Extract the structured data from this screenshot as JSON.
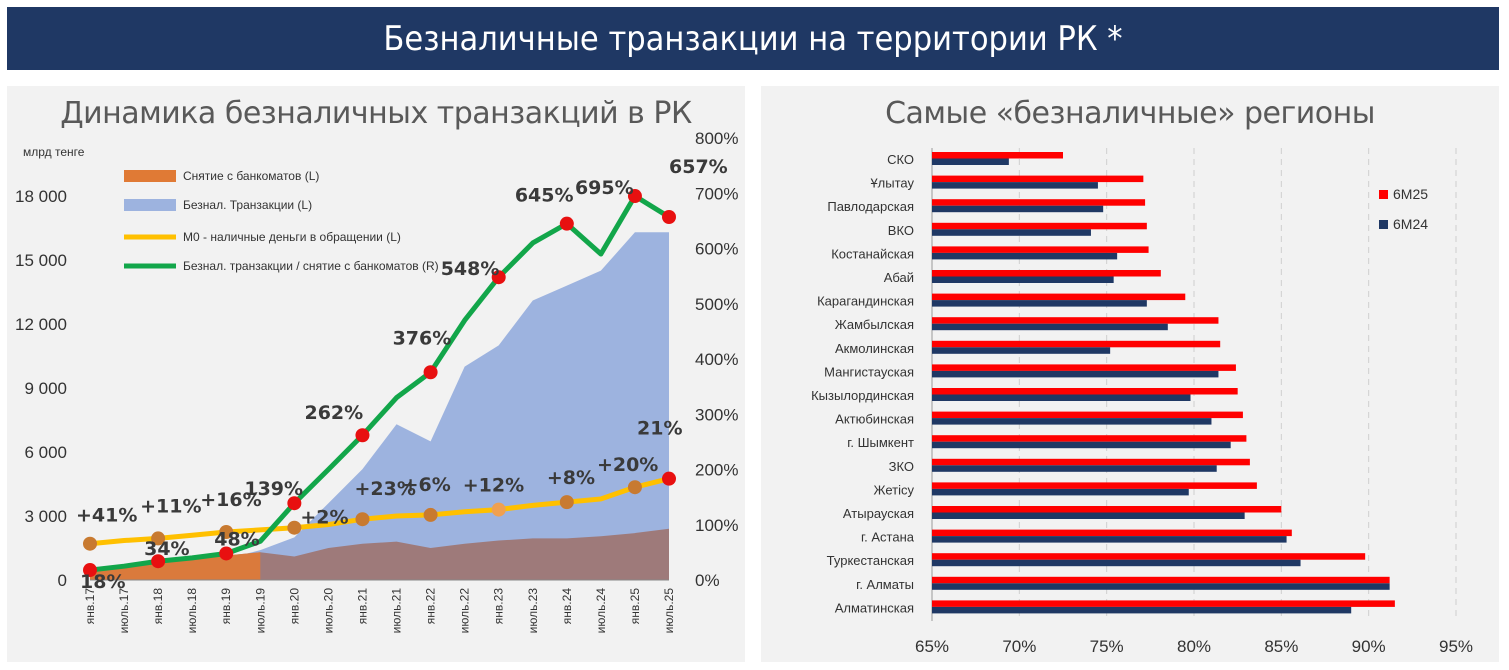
{
  "header": {
    "title": "Безналичные транзакции на территории РК *"
  },
  "left_panel": {
    "title": "Динамика безналичных транзакций в РК",
    "unit_label": "млрд тенге"
  },
  "right_panel": {
    "title": "Самые «безналичные» регионы"
  },
  "colors": {
    "banner": "#1f3864",
    "withdrawals": "#e07a35",
    "cashless_area": "#9db3df",
    "m0": "#ffc000",
    "ratio_line": "#12a64a",
    "withdraw_fill_dark": "#9e7a7a",
    "marker_red": "#e81010",
    "marker_orange": "#c87a30",
    "bar_6m25": "#ff0000",
    "bar_6m24": "#1f3864"
  },
  "chart_data": [
    {
      "type": "area",
      "title": "Динамика безналичных транзакций в РК",
      "ylabel": "млрд тенге",
      "ylim_left": [
        0,
        18000
      ],
      "ylim_right": [
        0,
        800
      ],
      "left_ticks": [
        "0",
        "3 000",
        "6 000",
        "9 000",
        "12 000",
        "15 000",
        "18 000"
      ],
      "right_ticks": [
        "0%",
        "100%",
        "200%",
        "300%",
        "400%",
        "500%",
        "600%",
        "700%",
        "800%"
      ],
      "x_ticks": [
        "янв.17",
        "июль.17",
        "янв.18",
        "июль.18",
        "янв.19",
        "июль.19",
        "янв.20",
        "июль.20",
        "янв.21",
        "июль.21",
        "янв.22",
        "июль.22",
        "янв.23",
        "июль.23",
        "янв.24",
        "июль.24",
        "янв.25",
        "июль.25"
      ],
      "legend": [
        "Снятие с банкоматов (L)",
        "Безнал. Транзакции (L)",
        "М0 - наличные деньги в обращении (L)",
        "Безнал. транзакции / снятие с банкоматов (R)"
      ],
      "grid": false,
      "series": [
        {
          "name": "Снятие с банкоматов (L)",
          "axis": "left",
          "x": [
            0,
            6,
            12,
            18,
            24,
            30,
            36,
            42,
            48,
            54,
            60,
            66,
            72,
            78,
            84,
            90,
            96,
            102
          ],
          "values": [
            450,
            700,
            850,
            1000,
            1150,
            1300,
            1100,
            1500,
            1700,
            1800,
            1500,
            1700,
            1850,
            1950,
            1950,
            2050,
            2200,
            2400
          ]
        },
        {
          "name": "Безнал. Транзакции (L)",
          "axis": "left",
          "x": [
            0,
            6,
            12,
            18,
            24,
            30,
            36,
            42,
            48,
            54,
            60,
            66,
            72,
            78,
            84,
            90,
            96,
            102
          ],
          "values": [
            150,
            300,
            500,
            800,
            1000,
            1400,
            2000,
            3600,
            5200,
            7300,
            6500,
            10000,
            11000,
            13100,
            13800,
            14500,
            16300,
            16300
          ]
        },
        {
          "name": "М0 - наличные деньги в обращении (L)",
          "axis": "left",
          "x": [
            0,
            6,
            12,
            18,
            24,
            30,
            36,
            42,
            48,
            54,
            60,
            66,
            72,
            78,
            84,
            90,
            96,
            102
          ],
          "values": [
            1700,
            1850,
            1950,
            2100,
            2250,
            2350,
            2450,
            2600,
            2850,
            3000,
            3050,
            3200,
            3300,
            3500,
            3650,
            3800,
            4350,
            4750
          ]
        },
        {
          "name": "Безнал. транзакции / снятие с банкоматов (R)",
          "axis": "right",
          "x": [
            0,
            6,
            12,
            18,
            24,
            30,
            36,
            42,
            48,
            54,
            60,
            66,
            72,
            78,
            84,
            90,
            96,
            102
          ],
          "values": [
            18,
            25,
            34,
            40,
            48,
            70,
            139,
            200,
            262,
            330,
            376,
            470,
            548,
            610,
            645,
            590,
            695,
            657
          ]
        }
      ],
      "annotations": [
        {
          "x": 0,
          "y": 18,
          "text": "18%"
        },
        {
          "x": 12,
          "y": 34,
          "text": "34%"
        },
        {
          "x": 24,
          "y": 48,
          "text": "48%"
        },
        {
          "x": 36,
          "y": 139,
          "text": "139%"
        },
        {
          "x": 48,
          "y": 262,
          "text": "262%"
        },
        {
          "x": 60,
          "y": 376,
          "text": "376%"
        },
        {
          "x": 72,
          "y": 548,
          "text": "548%"
        },
        {
          "x": 84,
          "y": 645,
          "text": "645%"
        },
        {
          "x": 96,
          "y": 695,
          "text": "695%"
        },
        {
          "x": 102,
          "y": 657,
          "text": "657%"
        },
        {
          "x": 0,
          "y": 1700,
          "text": "+41%"
        },
        {
          "x": 12,
          "y": 1950,
          "text": "+11%"
        },
        {
          "x": 24,
          "y": 2250,
          "text": "+16%"
        },
        {
          "x": 36,
          "y": 2450,
          "text": "+2%"
        },
        {
          "x": 48,
          "y": 2850,
          "text": "+23%"
        },
        {
          "x": 60,
          "y": 3050,
          "text": "+6%"
        },
        {
          "x": 72,
          "y": 3300,
          "text": "+12%"
        },
        {
          "x": 84,
          "y": 3650,
          "text": "+8%"
        },
        {
          "x": 96,
          "y": 4350,
          "text": "+20%"
        },
        {
          "x": 102,
          "y": 4750,
          "text": "21%"
        }
      ]
    },
    {
      "type": "bar",
      "title": "Самые «безналичные» регионы",
      "orientation": "horizontal",
      "xlim": [
        65,
        95
      ],
      "x_ticks": [
        "65%",
        "70%",
        "75%",
        "80%",
        "85%",
        "90%",
        "95%"
      ],
      "legend_position": "top-right",
      "categories": [
        "СКО",
        "Ұлытау",
        "Павлодарская",
        "ВКО",
        "Костанайская",
        "Абай",
        "Карагандинская",
        "Жамбылская",
        "Акмолинская",
        "Мангистауская",
        "Кызылординская",
        "Актюбинская",
        "г. Шымкент",
        "ЗКО",
        "Жетісу",
        "Атырауская",
        "г. Астана",
        "Туркестанская",
        "г. Алматы",
        "Алматинская"
      ],
      "series": [
        {
          "name": "6M25",
          "values": [
            72.5,
            77.1,
            77.2,
            77.3,
            77.4,
            78.1,
            79.5,
            81.4,
            81.5,
            82.4,
            82.5,
            82.8,
            83.0,
            83.2,
            83.6,
            85.0,
            85.6,
            89.8,
            91.2,
            91.5
          ]
        },
        {
          "name": "6M24",
          "values": [
            69.4,
            74.5,
            74.8,
            74.1,
            75.6,
            75.4,
            77.3,
            78.5,
            75.2,
            81.4,
            79.8,
            81.0,
            82.1,
            81.3,
            79.7,
            82.9,
            85.3,
            86.1,
            91.2,
            89.0
          ]
        }
      ]
    }
  ]
}
